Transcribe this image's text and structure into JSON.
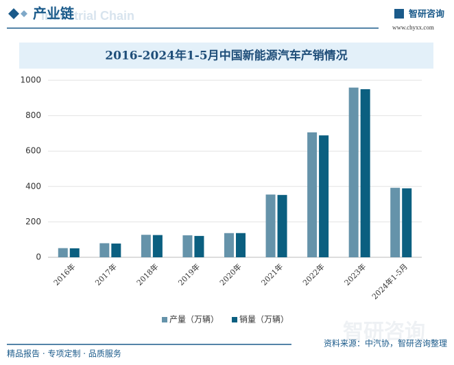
{
  "header": {
    "title": "产业链",
    "subtitle": "Industrial Chain"
  },
  "logo": {
    "name": "智研咨询",
    "url": "www.chyxx.com"
  },
  "chart_data": {
    "type": "bar",
    "title": "2016-2024年1-5月中国新能源汽车产销情况",
    "categories": [
      "2016年",
      "2017年",
      "2018年",
      "2019年",
      "2020年",
      "2021年",
      "2022年",
      "2023年",
      "2024年1-5月"
    ],
    "series": [
      {
        "name": "产量（万辆）",
        "color": "#6593aa",
        "values": [
          51.7,
          79.4,
          127,
          124.2,
          136.6,
          354.5,
          705.8,
          958.7,
          392.6
        ]
      },
      {
        "name": "销量（万辆）",
        "color": "#0b5f80",
        "values": [
          50.7,
          77.7,
          125.6,
          120.6,
          136.7,
          352.1,
          688.7,
          949.5,
          389.5
        ]
      }
    ],
    "ylim": [
      0,
      1000
    ],
    "yticks": [
      0,
      200,
      400,
      600,
      800,
      1000
    ],
    "grid": true,
    "legend": "bottom"
  },
  "footer": {
    "slogan": "精品报告 · 专项定制 · 品质服务",
    "source": "资料来源：中汽协，智研咨询整理"
  },
  "watermark": "智研咨询"
}
